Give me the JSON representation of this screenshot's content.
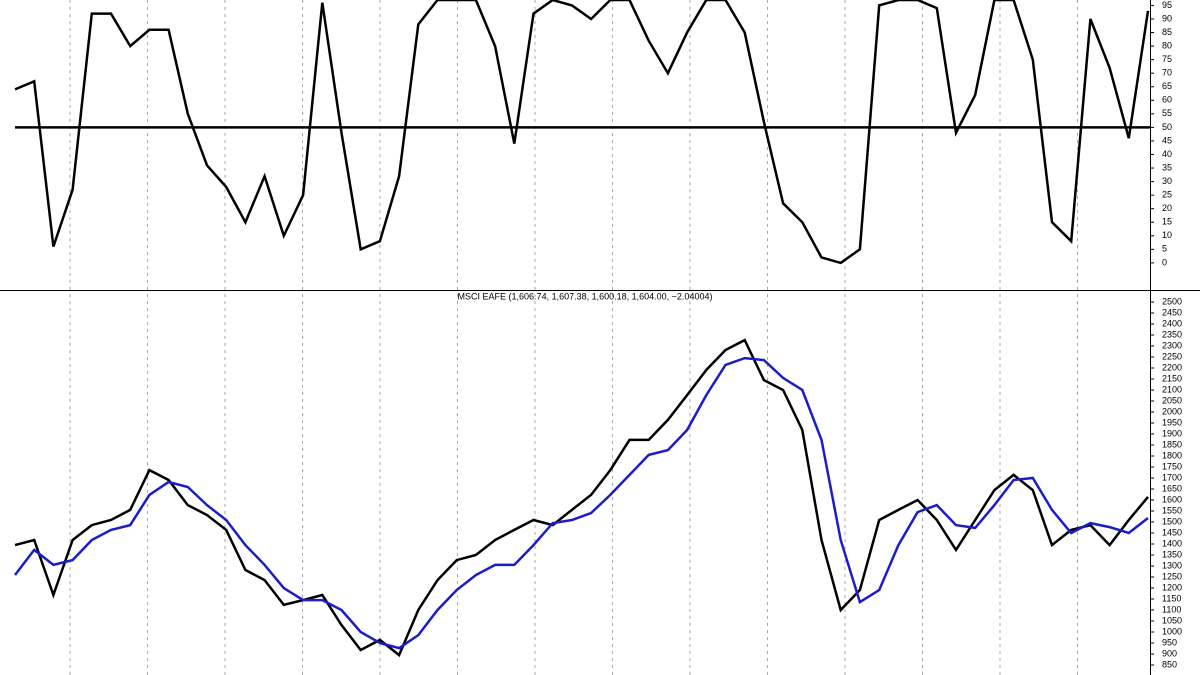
{
  "chart_data": [
    {
      "type": "line",
      "ylim": [
        -10,
        97
      ],
      "yticks": [
        0,
        5,
        10,
        15,
        20,
        25,
        30,
        35,
        40,
        45,
        50,
        55,
        60,
        65,
        70,
        75,
        80,
        85,
        90,
        95
      ],
      "hline": 50,
      "series": [
        {
          "color": "#000000",
          "values": [
            64,
            67,
            6,
            27,
            92,
            92,
            80,
            86,
            86,
            55,
            36,
            28,
            15,
            32,
            10,
            25,
            96,
            48,
            5,
            8,
            32,
            88,
            97,
            97,
            97,
            80,
            44,
            92,
            97,
            95,
            90,
            97,
            97,
            82,
            70,
            85,
            97,
            97,
            85,
            52,
            22,
            15,
            2,
            0,
            5,
            95,
            97,
            97,
            94,
            48,
            62,
            97,
            97,
            75,
            15,
            8,
            90,
            72,
            46,
            93
          ]
        }
      ]
    },
    {
      "type": "line",
      "title": "MSCI EAFE (1,606.74, 1,607.38, 1,600.18, 1,604.00, −2.04004)",
      "ylim": [
        800,
        2550
      ],
      "yticks": [
        850,
        900,
        950,
        1000,
        1050,
        1100,
        1150,
        1200,
        1250,
        1300,
        1350,
        1400,
        1450,
        1500,
        1550,
        1600,
        1650,
        1700,
        1750,
        1800,
        1850,
        1900,
        1950,
        2000,
        2050,
        2100,
        2150,
        2200,
        2250,
        2300,
        2350,
        2400,
        2450,
        2500
      ],
      "series": [
        {
          "color": "#000000",
          "values": [
            1395,
            1418,
            1168,
            1418,
            1486,
            1509,
            1555,
            1736,
            1691,
            1577,
            1532,
            1464,
            1282,
            1236,
            1123,
            1145,
            1168,
            1032,
            918,
            964,
            895,
            1100,
            1236,
            1327,
            1350,
            1418,
            1464,
            1509,
            1486,
            1555,
            1623,
            1736,
            1873,
            1873,
            1964,
            2077,
            2191,
            2282,
            2327,
            2145,
            2100,
            1918,
            1418,
            1100,
            1191,
            1509,
            1555,
            1600,
            1509,
            1373,
            1509,
            1645,
            1714,
            1645,
            1395,
            1464,
            1486,
            1395,
            1509,
            1614
          ]
        },
        {
          "color": "#1c1cc8",
          "values": [
            1259,
            1373,
            1305,
            1327,
            1418,
            1464,
            1486,
            1623,
            1682,
            1659,
            1577,
            1509,
            1395,
            1305,
            1200,
            1145,
            1145,
            1100,
            1000,
            950,
            927,
            986,
            1100,
            1191,
            1259,
            1305,
            1305,
            1395,
            1495,
            1509,
            1541,
            1623,
            1714,
            1805,
            1827,
            1918,
            2077,
            2214,
            2245,
            2236,
            2155,
            2100,
            1873,
            1418,
            1136,
            1191,
            1395,
            1545,
            1577,
            1486,
            1473,
            1577,
            1691,
            1700,
            1555,
            1450,
            1495,
            1477,
            1450,
            1518
          ]
        }
      ]
    }
  ]
}
